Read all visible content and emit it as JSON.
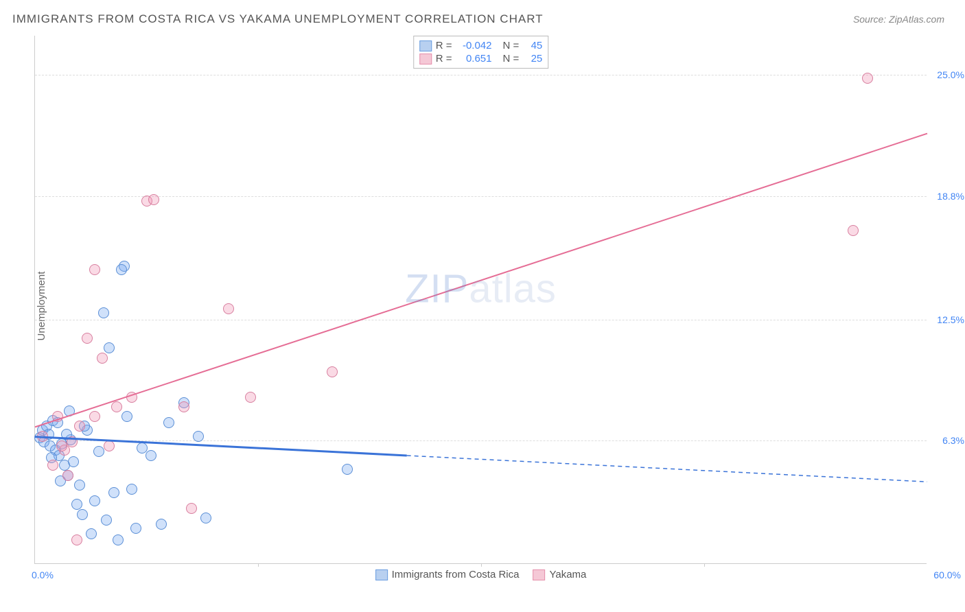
{
  "title": "IMMIGRANTS FROM COSTA RICA VS YAKAMA UNEMPLOYMENT CORRELATION CHART",
  "source": "Source: ZipAtlas.com",
  "watermark": "ZIPatlas",
  "ylabel": "Unemployment",
  "chart": {
    "type": "scatter",
    "xlim": [
      0,
      60
    ],
    "ylim": [
      0,
      27
    ],
    "xticks": [
      {
        "value": 0,
        "label": "0.0%"
      },
      {
        "value": 15,
        "label": ""
      },
      {
        "value": 30,
        "label": ""
      },
      {
        "value": 45,
        "label": ""
      },
      {
        "value": 60,
        "label": "60.0%"
      }
    ],
    "yticks": [
      {
        "value": 6.3,
        "label": "6.3%"
      },
      {
        "value": 12.5,
        "label": "12.5%"
      },
      {
        "value": 18.8,
        "label": "18.8%"
      },
      {
        "value": 25.0,
        "label": "25.0%"
      }
    ],
    "background_color": "#ffffff",
    "grid_color": "#dddddd",
    "axis_color": "#cccccc",
    "tick_label_color": "#4285f4",
    "series": [
      {
        "name": "Immigrants from Costa Rica",
        "color_fill": "rgba(120, 170, 240, 0.35)",
        "color_stroke": "#5b8fd6",
        "marker_radius": 8,
        "swatch_fill": "#b8d0f0",
        "swatch_stroke": "#6a9de0",
        "R": "-0.042",
        "N": "45",
        "regression": {
          "x1": 0,
          "y1": 6.5,
          "x2": 60,
          "y2": 4.2,
          "solid_until_x": 25,
          "color": "#3a73d8",
          "stroke_width": 3
        },
        "points": [
          [
            0.3,
            6.4
          ],
          [
            0.5,
            6.8
          ],
          [
            0.6,
            6.2
          ],
          [
            0.8,
            7.0
          ],
          [
            1.0,
            6.0
          ],
          [
            1.2,
            7.3
          ],
          [
            1.4,
            5.8
          ],
          [
            1.6,
            5.5
          ],
          [
            1.8,
            6.1
          ],
          [
            2.0,
            5.0
          ],
          [
            2.2,
            4.5
          ],
          [
            2.4,
            6.3
          ],
          [
            2.6,
            5.2
          ],
          [
            2.8,
            3.0
          ],
          [
            3.0,
            4.0
          ],
          [
            3.2,
            2.5
          ],
          [
            3.5,
            6.8
          ],
          [
            3.8,
            1.5
          ],
          [
            4.0,
            3.2
          ],
          [
            4.3,
            5.7
          ],
          [
            4.6,
            12.8
          ],
          [
            4.8,
            2.2
          ],
          [
            5.0,
            11.0
          ],
          [
            5.3,
            3.6
          ],
          [
            5.6,
            1.2
          ],
          [
            6.0,
            15.2
          ],
          [
            6.2,
            7.5
          ],
          [
            6.5,
            3.8
          ],
          [
            6.8,
            1.8
          ],
          [
            7.2,
            5.9
          ],
          [
            7.8,
            5.5
          ],
          [
            8.5,
            2.0
          ],
          [
            9.0,
            7.2
          ],
          [
            10.0,
            8.2
          ],
          [
            11.0,
            6.5
          ],
          [
            11.5,
            2.3
          ],
          [
            21.0,
            4.8
          ],
          [
            2.3,
            7.8
          ],
          [
            1.5,
            7.2
          ],
          [
            0.9,
            6.6
          ],
          [
            1.1,
            5.4
          ],
          [
            3.3,
            7.0
          ],
          [
            5.8,
            15.0
          ],
          [
            1.7,
            4.2
          ],
          [
            2.1,
            6.6
          ]
        ]
      },
      {
        "name": "Yakama",
        "color_fill": "rgba(240, 150, 180, 0.35)",
        "color_stroke": "#d87f9f",
        "marker_radius": 8,
        "swatch_fill": "#f5c8d6",
        "swatch_stroke": "#e58fab",
        "R": "0.651",
        "N": "25",
        "regression": {
          "x1": 0,
          "y1": 7.0,
          "x2": 60,
          "y2": 22.0,
          "solid_until_x": 60,
          "color": "#e56d95",
          "stroke_width": 2
        },
        "points": [
          [
            0.5,
            6.5
          ],
          [
            1.2,
            5.0
          ],
          [
            1.5,
            7.5
          ],
          [
            2.0,
            5.8
          ],
          [
            2.5,
            6.2
          ],
          [
            3.0,
            7.0
          ],
          [
            3.5,
            11.5
          ],
          [
            4.0,
            7.5
          ],
          [
            4.5,
            10.5
          ],
          [
            5.0,
            6.0
          ],
          [
            5.5,
            8.0
          ],
          [
            6.5,
            8.5
          ],
          [
            7.5,
            18.5
          ],
          [
            8.0,
            18.6
          ],
          [
            10.0,
            8.0
          ],
          [
            10.5,
            2.8
          ],
          [
            13.0,
            13.0
          ],
          [
            14.5,
            8.5
          ],
          [
            20.0,
            9.8
          ],
          [
            4.0,
            15.0
          ],
          [
            2.8,
            1.2
          ],
          [
            55.0,
            17.0
          ],
          [
            56.0,
            24.8
          ],
          [
            1.8,
            6.0
          ],
          [
            2.2,
            4.5
          ]
        ]
      }
    ]
  }
}
